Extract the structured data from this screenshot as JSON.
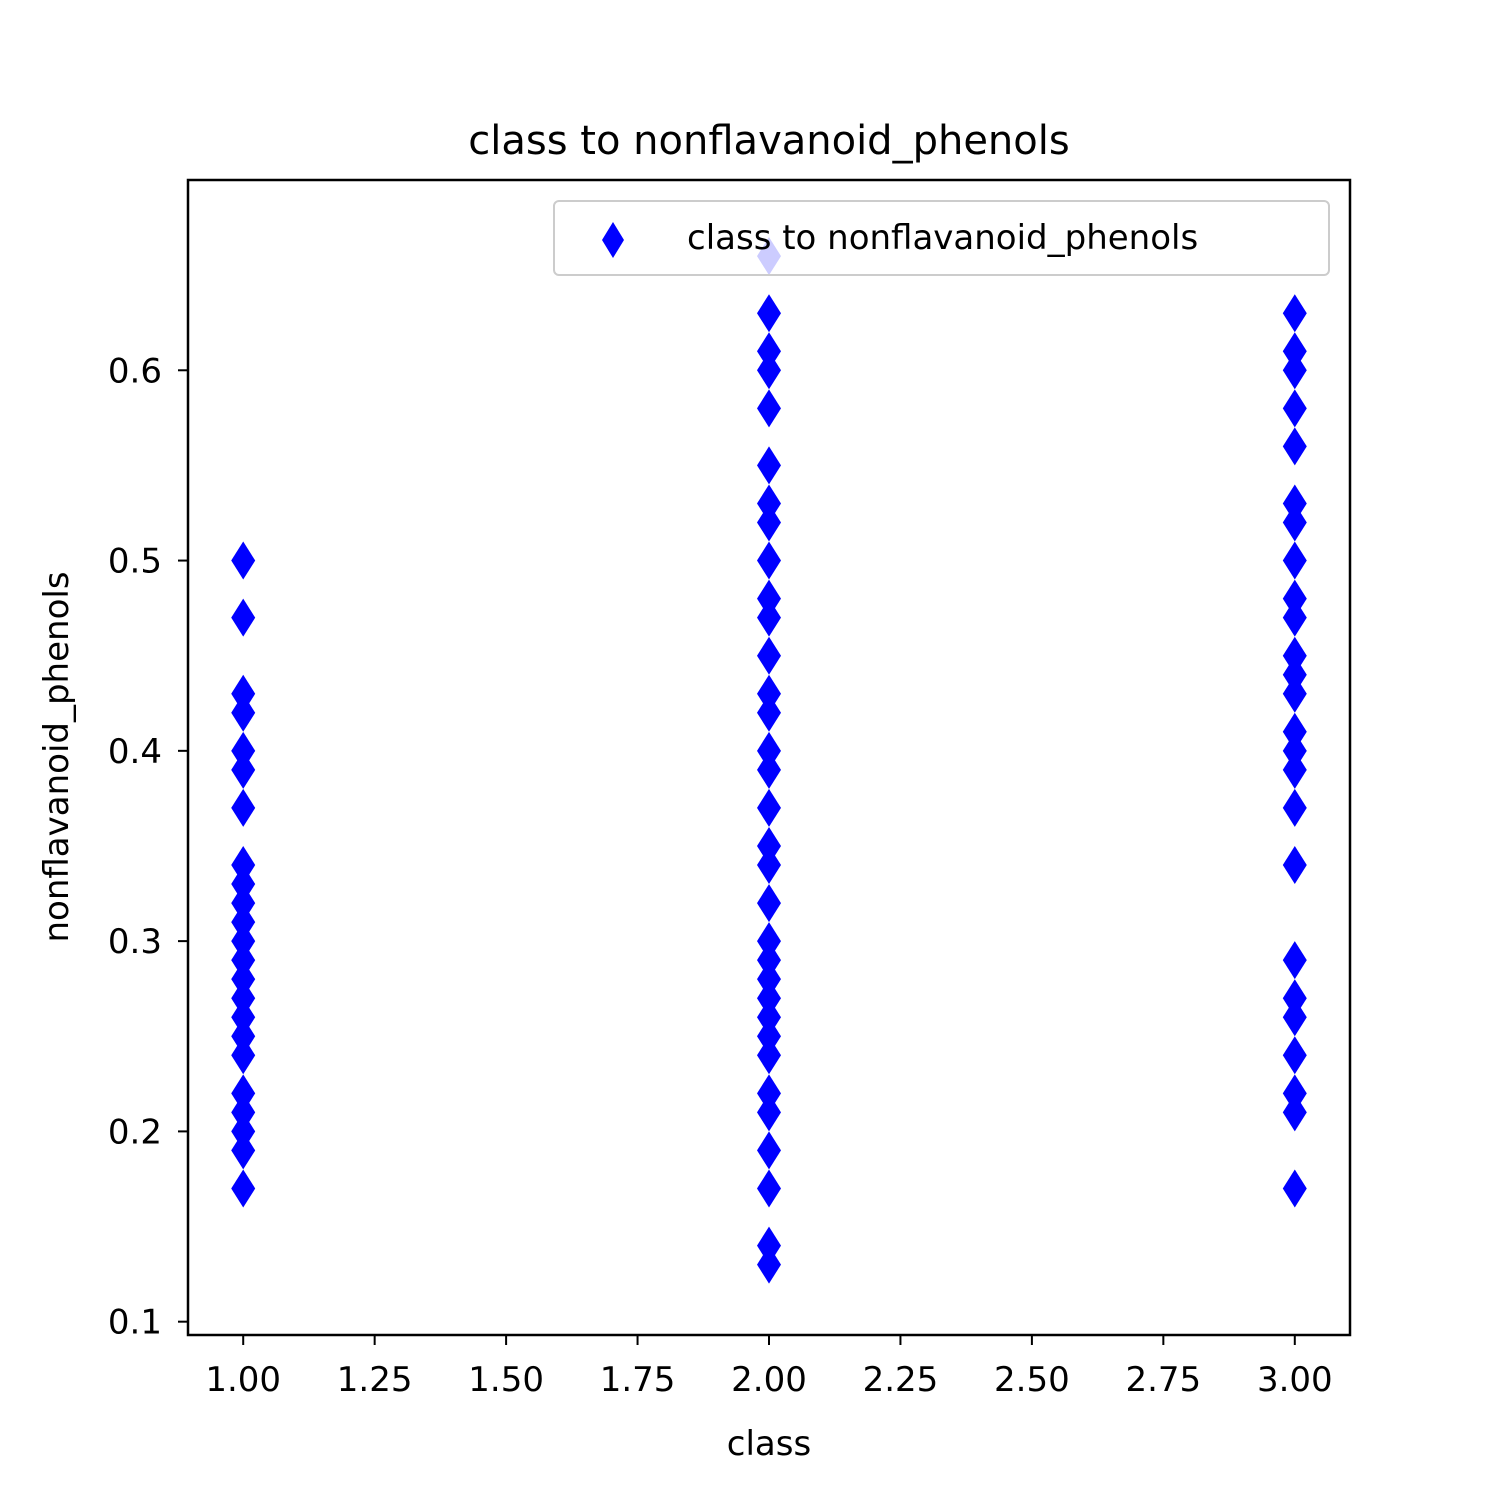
{
  "chart_data": {
    "type": "scatter",
    "title": "class to nonflavanoid_phenols",
    "xlabel": "class",
    "ylabel": "nonflavanoid_phenols",
    "xlim": [
      0.895,
      3.105
    ],
    "ylim": [
      0.093,
      0.7
    ],
    "xticks": [
      1.0,
      1.25,
      1.5,
      1.75,
      2.0,
      2.25,
      2.5,
      2.75,
      3.0
    ],
    "xtick_labels": [
      "1.00",
      "1.25",
      "1.50",
      "1.75",
      "2.00",
      "2.25",
      "2.50",
      "2.75",
      "3.00"
    ],
    "yticks": [
      0.1,
      0.2,
      0.3,
      0.4,
      0.5,
      0.6
    ],
    "ytick_labels": [
      "0.1",
      "0.2",
      "0.3",
      "0.4",
      "0.5",
      "0.6"
    ],
    "grid": false,
    "legend": {
      "position": "top-right",
      "entries": [
        "class to nonflavanoid_phenols"
      ]
    },
    "marker": "thin-diamond",
    "color": "#0000ff",
    "series": [
      {
        "name": "class to nonflavanoid_phenols",
        "points": [
          [
            1,
            0.17
          ],
          [
            1,
            0.19
          ],
          [
            1,
            0.2
          ],
          [
            1,
            0.21
          ],
          [
            1,
            0.22
          ],
          [
            1,
            0.24
          ],
          [
            1,
            0.25
          ],
          [
            1,
            0.26
          ],
          [
            1,
            0.27
          ],
          [
            1,
            0.28
          ],
          [
            1,
            0.29
          ],
          [
            1,
            0.3
          ],
          [
            1,
            0.31
          ],
          [
            1,
            0.32
          ],
          [
            1,
            0.33
          ],
          [
            1,
            0.34
          ],
          [
            1,
            0.37
          ],
          [
            1,
            0.39
          ],
          [
            1,
            0.4
          ],
          [
            1,
            0.42
          ],
          [
            1,
            0.43
          ],
          [
            1,
            0.47
          ],
          [
            1,
            0.5
          ],
          [
            2,
            0.13
          ],
          [
            2,
            0.14
          ],
          [
            2,
            0.17
          ],
          [
            2,
            0.19
          ],
          [
            2,
            0.21
          ],
          [
            2,
            0.22
          ],
          [
            2,
            0.24
          ],
          [
            2,
            0.25
          ],
          [
            2,
            0.26
          ],
          [
            2,
            0.27
          ],
          [
            2,
            0.28
          ],
          [
            2,
            0.29
          ],
          [
            2,
            0.3
          ],
          [
            2,
            0.32
          ],
          [
            2,
            0.34
          ],
          [
            2,
            0.35
          ],
          [
            2,
            0.37
          ],
          [
            2,
            0.39
          ],
          [
            2,
            0.4
          ],
          [
            2,
            0.42
          ],
          [
            2,
            0.43
          ],
          [
            2,
            0.45
          ],
          [
            2,
            0.47
          ],
          [
            2,
            0.48
          ],
          [
            2,
            0.5
          ],
          [
            2,
            0.52
          ],
          [
            2,
            0.53
          ],
          [
            2,
            0.55
          ],
          [
            2,
            0.58
          ],
          [
            2,
            0.6
          ],
          [
            2,
            0.61
          ],
          [
            2,
            0.63
          ],
          [
            2,
            0.66
          ],
          [
            3,
            0.17
          ],
          [
            3,
            0.21
          ],
          [
            3,
            0.22
          ],
          [
            3,
            0.24
          ],
          [
            3,
            0.26
          ],
          [
            3,
            0.27
          ],
          [
            3,
            0.29
          ],
          [
            3,
            0.34
          ],
          [
            3,
            0.37
          ],
          [
            3,
            0.39
          ],
          [
            3,
            0.4
          ],
          [
            3,
            0.41
          ],
          [
            3,
            0.43
          ],
          [
            3,
            0.44
          ],
          [
            3,
            0.45
          ],
          [
            3,
            0.47
          ],
          [
            3,
            0.48
          ],
          [
            3,
            0.5
          ],
          [
            3,
            0.52
          ],
          [
            3,
            0.53
          ],
          [
            3,
            0.56
          ],
          [
            3,
            0.58
          ],
          [
            3,
            0.6
          ],
          [
            3,
            0.61
          ],
          [
            3,
            0.63
          ]
        ]
      }
    ]
  }
}
